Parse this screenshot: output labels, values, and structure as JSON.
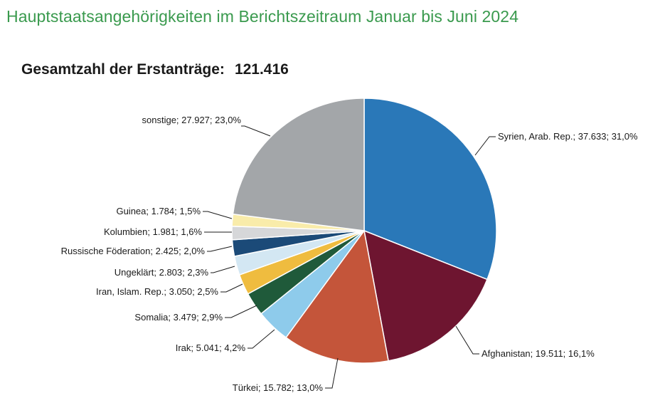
{
  "header": {
    "title": "Hauptstaatsangehörigkeiten im Berichtszeitraum Januar bis Juni 2024",
    "total_label": "Gesamtzahl der Erstanträge:",
    "total_value": "121.416"
  },
  "chart_data": {
    "type": "pie",
    "title": "Hauptstaatsangehörigkeiten im Berichtszeitraum Januar bis Juni 2024",
    "total": 121416,
    "slices": [
      {
        "name": "Syrien, Arab. Rep.",
        "value": 37633,
        "percent": 31.0,
        "label": "Syrien, Arab. Rep.; 37.633; 31,0%",
        "color": "#2a78b8"
      },
      {
        "name": "Afghanistan",
        "value": 19511,
        "percent": 16.1,
        "label": "Afghanistan; 19.511; 16,1%",
        "color": "#6e1530"
      },
      {
        "name": "Türkei",
        "value": 15782,
        "percent": 13.0,
        "label": "Türkei; 15.782; 13,0%",
        "color": "#c4553a"
      },
      {
        "name": "Irak",
        "value": 5041,
        "percent": 4.2,
        "label": "Irak; 5.041; 4,2%",
        "color": "#8ecbeb"
      },
      {
        "name": "Somalia",
        "value": 3479,
        "percent": 2.9,
        "label": "Somalia; 3.479; 2,9%",
        "color": "#1f5a3a"
      },
      {
        "name": "Iran, Islam. Rep.",
        "value": 3050,
        "percent": 2.5,
        "label": "Iran, Islam. Rep.; 3.050; 2,5%",
        "color": "#efbc3f"
      },
      {
        "name": "Ungeklärt",
        "value": 2803,
        "percent": 2.3,
        "label": "Ungeklärt; 2.803; 2,3%",
        "color": "#d3e7f3"
      },
      {
        "name": "Russische Föderation",
        "value": 2425,
        "percent": 2.0,
        "label": "Russische Föderation; 2.425; 2,0%",
        "color": "#1b4a78"
      },
      {
        "name": "Kolumbien",
        "value": 1981,
        "percent": 1.6,
        "label": "Kolumbien; 1.981; 1,6%",
        "color": "#d6d7d9"
      },
      {
        "name": "Guinea",
        "value": 1784,
        "percent": 1.5,
        "label": "Guinea; 1.784; 1,5%",
        "color": "#f9ecaa"
      },
      {
        "name": "sonstige",
        "value": 27927,
        "percent": 23.0,
        "label": "sonstige; 27.927; 23,0%",
        "color": "#a3a6a9"
      }
    ]
  }
}
